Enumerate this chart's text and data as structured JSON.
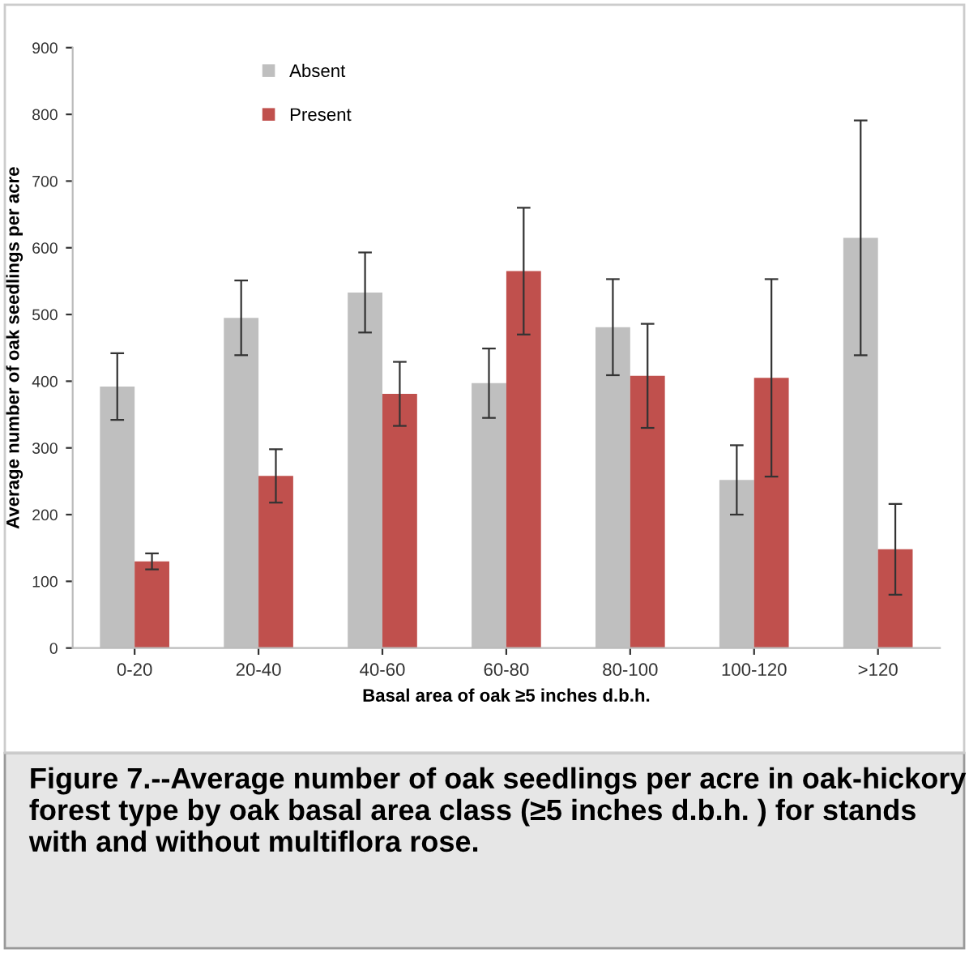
{
  "chart_data": {
    "type": "bar",
    "categories": [
      "0-20",
      "20-40",
      "40-60",
      "60-80",
      "80-100",
      "100-120",
      ">120"
    ],
    "xlabel": "Basal area of oak ≥5 inches d.b.h.",
    "ylabel": "Average number of oak seedlings per acre",
    "ylim": [
      0,
      900
    ],
    "yticks": [
      0,
      100,
      200,
      300,
      400,
      500,
      600,
      700,
      800,
      900
    ],
    "grid": false,
    "legend": "top left",
    "series": [
      {
        "name": "Absent",
        "color": "#bfbfbf",
        "values": [
          392,
          495,
          533,
          397,
          481,
          252,
          615
        ],
        "errors": [
          50,
          56,
          60,
          52,
          72,
          52,
          176
        ]
      },
      {
        "name": "Present",
        "color": "#c0504d",
        "values": [
          130,
          258,
          381,
          565,
          408,
          405,
          148
        ],
        "errors": [
          12,
          40,
          48,
          95,
          78,
          148,
          68
        ]
      }
    ],
    "annotations": [
      "Figure 7.--Average number of oak seedlings per acre in oak-hickory forest type by oak basal area class (≥5 inches d.b.h. ) for stands with and without multiflora rose."
    ]
  }
}
